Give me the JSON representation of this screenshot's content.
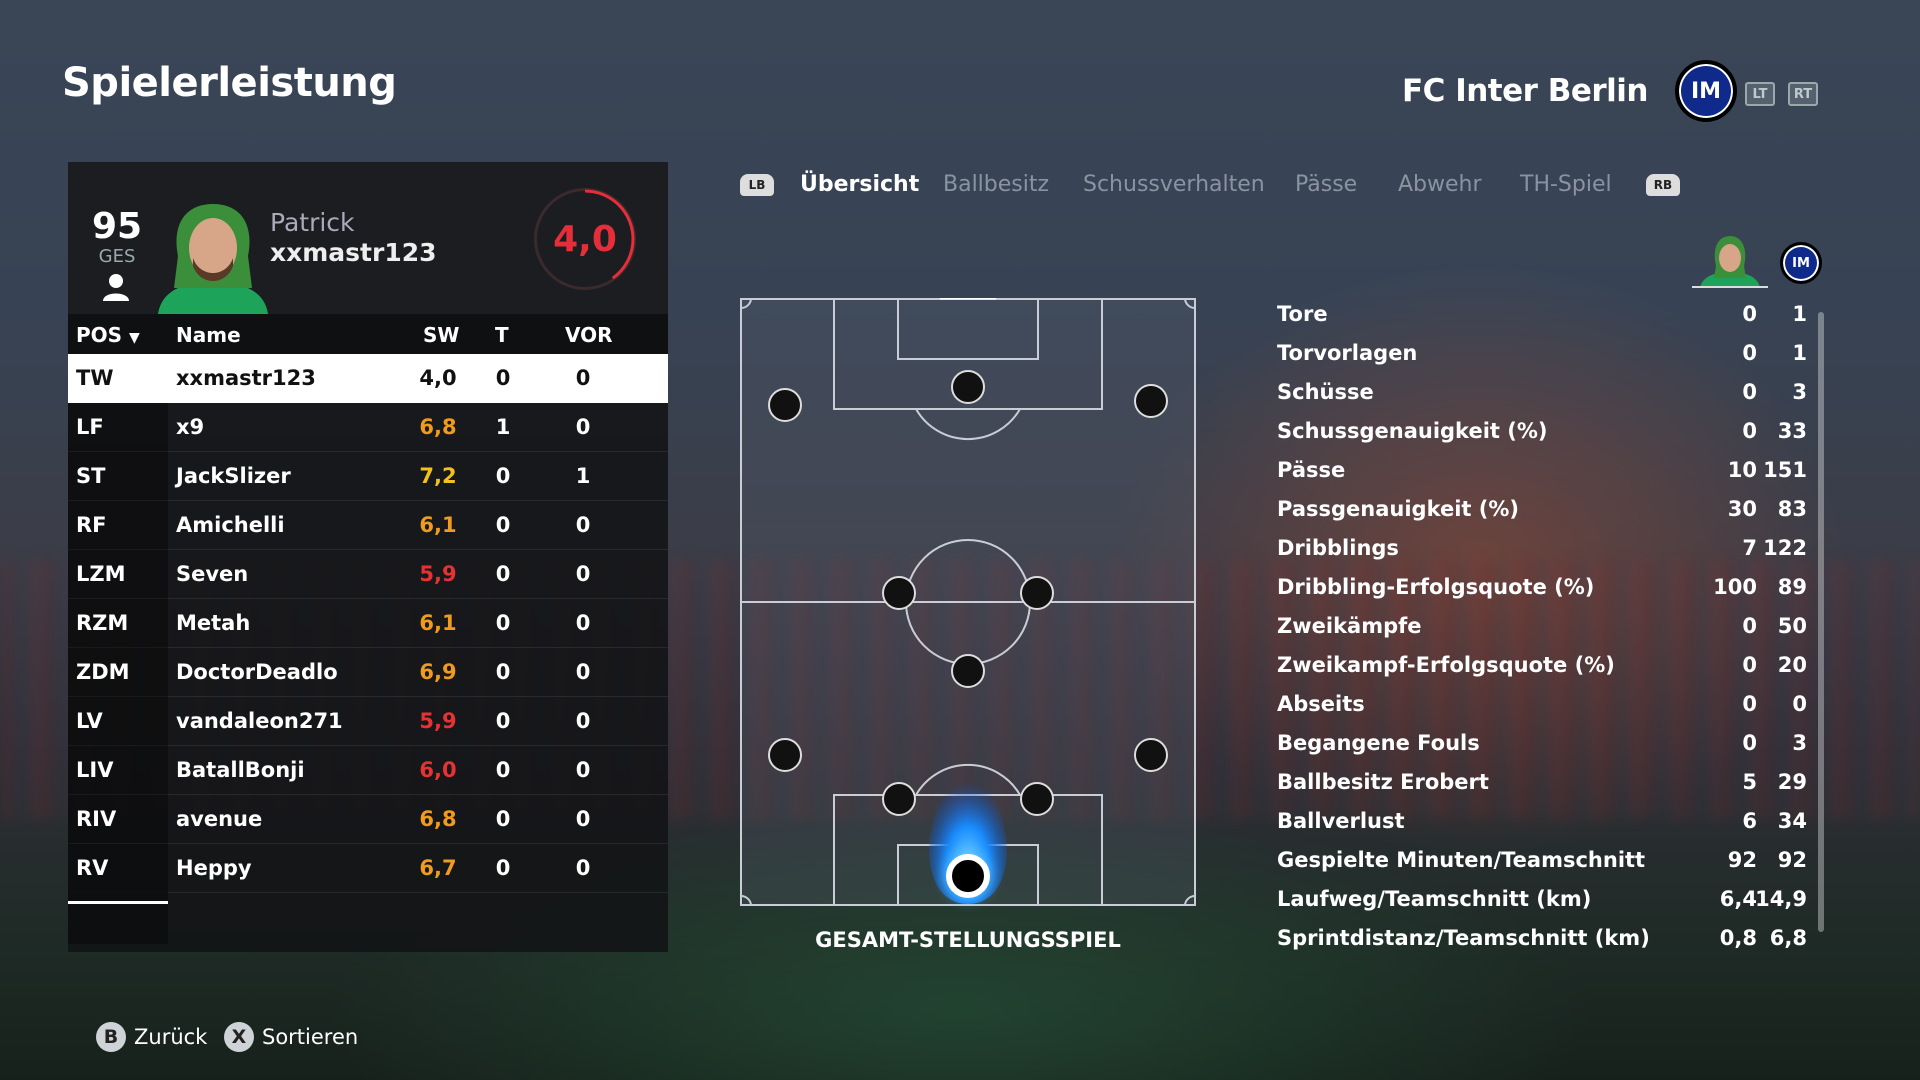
{
  "page": {
    "title": "Spielerleistung"
  },
  "team": {
    "name": "FC Inter Berlin",
    "logo_text": "IM",
    "trigger_left": "LT",
    "trigger_right": "RT"
  },
  "player": {
    "overall": "95",
    "overall_label": "GES",
    "first_name": "Patrick",
    "last_name": "xxmastr123",
    "rating": "4,0"
  },
  "table": {
    "headers": {
      "pos": "POS",
      "name": "Name",
      "sw": "SW",
      "t": "T",
      "vor": "VOR"
    },
    "rows": [
      {
        "pos": "TW",
        "name": "xxmastr123",
        "sw": "4,0",
        "t": "0",
        "vor": "0",
        "color": "white"
      },
      {
        "pos": "LF",
        "name": "x9",
        "sw": "6,8",
        "t": "1",
        "vor": "0",
        "color": "orange"
      },
      {
        "pos": "ST",
        "name": "JackSlizer",
        "sw": "7,2",
        "t": "0",
        "vor": "1",
        "color": "yellow"
      },
      {
        "pos": "RF",
        "name": "Amichelli",
        "sw": "6,1",
        "t": "0",
        "vor": "0",
        "color": "orange"
      },
      {
        "pos": "LZM",
        "name": "Seven",
        "sw": "5,9",
        "t": "0",
        "vor": "0",
        "color": "red"
      },
      {
        "pos": "RZM",
        "name": "Metah",
        "sw": "6,1",
        "t": "0",
        "vor": "0",
        "color": "orange"
      },
      {
        "pos": "ZDM",
        "name": "DoctorDeadlo",
        "sw": "6,9",
        "t": "0",
        "vor": "0",
        "color": "orange"
      },
      {
        "pos": "LV",
        "name": "vandaleon271",
        "sw": "5,9",
        "t": "0",
        "vor": "0",
        "color": "red"
      },
      {
        "pos": "LIV",
        "name": "BatallBonji",
        "sw": "6,0",
        "t": "0",
        "vor": "0",
        "color": "red"
      },
      {
        "pos": "RIV",
        "name": "avenue",
        "sw": "6,8",
        "t": "0",
        "vor": "0",
        "color": "orange"
      },
      {
        "pos": "RV",
        "name": "Heppy",
        "sw": "6,7",
        "t": "0",
        "vor": "0",
        "color": "orange"
      }
    ]
  },
  "tabs": {
    "lb": "LB",
    "rb": "RB",
    "items": [
      "Übersicht",
      "Ballbesitz",
      "Schussverhalten",
      "Pässe",
      "Abwehr",
      "TH-Spiel"
    ],
    "active": 0
  },
  "pitch": {
    "label": "GESAMT-STELLUNGSSPIEL"
  },
  "stats": [
    {
      "label": "Tore",
      "player": "0",
      "team": "1"
    },
    {
      "label": "Torvorlagen",
      "player": "0",
      "team": "1"
    },
    {
      "label": "Schüsse",
      "player": "0",
      "team": "3"
    },
    {
      "label": "Schussgenauigkeit (%)",
      "player": "0",
      "team": "33"
    },
    {
      "label": "Pässe",
      "player": "10",
      "team": "151"
    },
    {
      "label": "Passgenauigkeit (%)",
      "player": "30",
      "team": "83"
    },
    {
      "label": "Dribblings",
      "player": "7",
      "team": "122"
    },
    {
      "label": "Dribbling-Erfolgsquote (%)",
      "player": "100",
      "team": "89"
    },
    {
      "label": "Zweikämpfe",
      "player": "0",
      "team": "50"
    },
    {
      "label": "Zweikampf-Erfolgsquote (%)",
      "player": "0",
      "team": "20"
    },
    {
      "label": "Abseits",
      "player": "0",
      "team": "0"
    },
    {
      "label": "Begangene Fouls",
      "player": "0",
      "team": "3"
    },
    {
      "label": "Ballbesitz Erobert",
      "player": "5",
      "team": "29"
    },
    {
      "label": "Ballverlust",
      "player": "6",
      "team": "34"
    },
    {
      "label": "Gespielte Minuten/Teamschnitt",
      "player": "92",
      "team": "92"
    },
    {
      "label": "Laufweg/Teamschnitt (km)",
      "player": "6,4",
      "team": "14,9"
    },
    {
      "label": "Sprintdistanz/Teamschnitt (km)",
      "player": "0,8",
      "team": "6,8"
    }
  ],
  "footer": {
    "back_key": "B",
    "back_label": "Zurück",
    "sort_key": "X",
    "sort_label": "Sortieren"
  },
  "colors": {
    "accent_red": "#e62e3a",
    "orange": "#f09a1e",
    "yellow": "#f3c21a",
    "red": "#e63232",
    "heat": "#1a8cff"
  }
}
